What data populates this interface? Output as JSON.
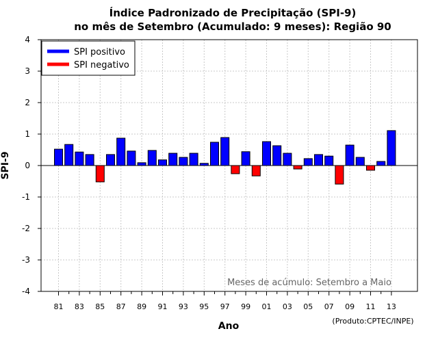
{
  "chart_data": {
    "type": "bar",
    "title_line1": "Índice Padronizado de Precipitação (SPI-9)",
    "title_line2": "no mês de Setembro (Acumulado: 9 meses): Região 90",
    "xlabel": "Ano",
    "ylabel": "SPI-9",
    "ylim": [
      -4,
      4
    ],
    "yticks": [
      "4",
      "3",
      "2",
      "1",
      "0",
      "-1",
      "-2",
      "-3",
      "-4"
    ],
    "ytick_values": [
      4,
      3,
      2,
      1,
      0,
      -1,
      -2,
      -3,
      -4
    ],
    "xtick_labels": [
      "81",
      "83",
      "85",
      "87",
      "89",
      "91",
      "93",
      "95",
      "97",
      "99",
      "01",
      "03",
      "05",
      "07",
      "09",
      "11",
      "13"
    ],
    "categories": [
      "1981",
      "1982",
      "1983",
      "1984",
      "1985",
      "1986",
      "1987",
      "1988",
      "1989",
      "1990",
      "1991",
      "1992",
      "1993",
      "1994",
      "1995",
      "1996",
      "1997",
      "1998",
      "1999",
      "2000",
      "2001",
      "2002",
      "2003",
      "2004",
      "2005",
      "2006",
      "2007",
      "2008",
      "2009",
      "2010",
      "2011",
      "2012",
      "2013"
    ],
    "values": [
      0.52,
      0.67,
      0.43,
      0.35,
      -0.52,
      0.35,
      0.87,
      0.46,
      0.09,
      0.48,
      0.18,
      0.39,
      0.26,
      0.39,
      0.07,
      0.74,
      0.89,
      -0.26,
      0.44,
      -0.33,
      0.76,
      0.63,
      0.39,
      -0.11,
      0.22,
      0.35,
      0.3,
      -0.59,
      0.65,
      0.26,
      -0.15,
      0.13,
      1.11
    ],
    "legend": [
      {
        "label": "SPI positivo",
        "color": "#0000ff"
      },
      {
        "label": "SPI negativo",
        "color": "#ff0000"
      }
    ],
    "positive_color": "#0000ff",
    "negative_color": "#ff0000",
    "grid": true,
    "legend_position": "top-left",
    "annotation": "Meses de acúmulo: Setembro a Maio",
    "credit": "(Produto:CPTEC/INPE)"
  }
}
